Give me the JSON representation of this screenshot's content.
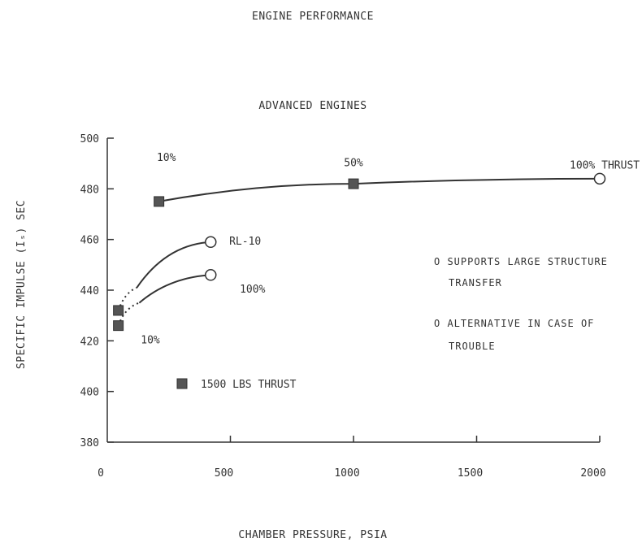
{
  "chart_data": {
    "type": "line",
    "title": "ENGINE PERFORMANCE",
    "subtitle": "ADVANCED ENGINES",
    "xlabel": "CHAMBER PRESSURE, PSIA",
    "ylabel": "SPECIFIC IMPULSE (Iₛ) SEC",
    "xlim": [
      0,
      2000
    ],
    "ylim": [
      380,
      500
    ],
    "xticks": [
      0,
      500,
      1000,
      1500,
      2000
    ],
    "yticks": [
      380,
      400,
      420,
      440,
      460,
      480,
      500
    ],
    "xtick_labels": [
      "0",
      "500",
      "1000",
      "1500",
      "2000"
    ],
    "ytick_labels": [
      "380",
      "400",
      "420",
      "440",
      "460",
      "480",
      "500"
    ],
    "grid": false,
    "series": [
      {
        "name": "",
        "line": "solid",
        "points": [
          {
            "x": 210,
            "y": 475,
            "marker": "square"
          },
          {
            "x": 1000,
            "y": 482,
            "marker": "square"
          },
          {
            "x": 2000,
            "y": 484,
            "marker": "circle"
          }
        ]
      },
      {
        "name": "RL-10",
        "line": "solid",
        "dotted_segment_to_x": 120,
        "points": [
          {
            "x": 45,
            "y": 432,
            "marker": "square"
          },
          {
            "x": 120,
            "y": 441,
            "marker": "none"
          },
          {
            "x": 420,
            "y": 459,
            "marker": "circle"
          }
        ]
      },
      {
        "name": "",
        "line": "solid",
        "dotted_segment_to_x": 130,
        "points": [
          {
            "x": 45,
            "y": 426,
            "marker": "square"
          },
          {
            "x": 130,
            "y": 435,
            "marker": "none"
          },
          {
            "x": 420,
            "y": 446,
            "marker": "circle"
          }
        ]
      }
    ],
    "annotations": [
      {
        "text": "10%",
        "x": 240,
        "y": 491
      },
      {
        "text": "50%",
        "x": 1000,
        "y": 489
      },
      {
        "text": "100% THRUST",
        "x": 2020,
        "y": 488
      },
      {
        "text": "RL-10",
        "x": 560,
        "y": 458
      },
      {
        "text": "100%",
        "x": 590,
        "y": 439
      },
      {
        "text": "10%",
        "x": 175,
        "y": 419
      }
    ],
    "legend": {
      "marker": "square",
      "label": "1500 LBS THRUST",
      "position": "lower-left"
    },
    "notes": [
      "O SUPPORTS LARGE STRUCTURE",
      "TRANSFER",
      "O ALTERNATIVE IN CASE OF",
      "TROUBLE"
    ]
  },
  "colors": {
    "ink": "#333333",
    "marker_fill": "#555555",
    "background": "#ffffff"
  }
}
